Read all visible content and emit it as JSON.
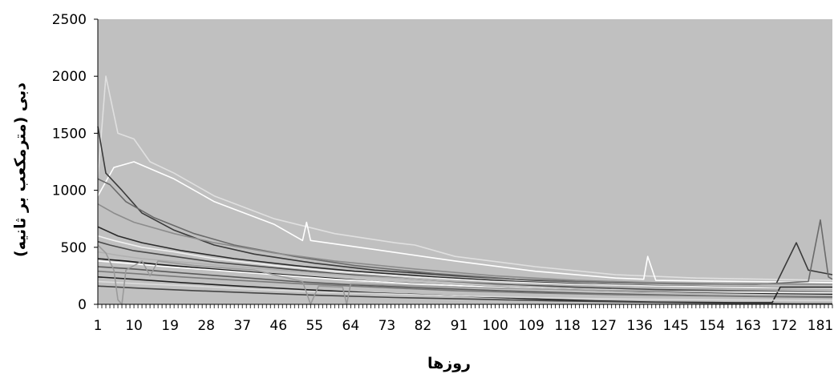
{
  "colors": {
    "plot_background": "#c0c0c0",
    "axis": "#000000",
    "series_palette": [
      "#ffffff",
      "#e6e6e6",
      "#d2d2d2",
      "#9a9a9a",
      "#7a7a7a",
      "#5a5a5a",
      "#3a3a3a",
      "#1a1a1a"
    ]
  },
  "chart_data": {
    "type": "line",
    "title": "",
    "xlabel": "روزها",
    "ylabel": "دبی (مترمکعب بر ثانیه)",
    "xlim": [
      1,
      184
    ],
    "ylim": [
      0,
      2500
    ],
    "grid": false,
    "legend": "none",
    "x_tick_labels": [
      "1",
      "10",
      "19",
      "28",
      "37",
      "46",
      "55",
      "64",
      "73",
      "82",
      "91",
      "100",
      "109",
      "118",
      "127",
      "136",
      "145",
      "154",
      "163",
      "172",
      "181"
    ],
    "y_tick_labels": [
      "0",
      "500",
      "1000",
      "1500",
      "2000",
      "2500"
    ],
    "series": [
      {
        "color": "#e0e0e0",
        "values": [
          [
            1,
            1100
          ],
          [
            3,
            2000
          ],
          [
            6,
            1500
          ],
          [
            10,
            1450
          ],
          [
            14,
            1250
          ],
          [
            20,
            1150
          ],
          [
            30,
            950
          ],
          [
            45,
            750
          ],
          [
            60,
            620
          ],
          [
            75,
            540
          ],
          [
            80,
            520
          ],
          [
            90,
            420
          ],
          [
            110,
            330
          ],
          [
            130,
            260
          ],
          [
            150,
            230
          ],
          [
            184,
            210
          ]
        ]
      },
      {
        "color": "#ffffff",
        "values": [
          [
            1,
            950
          ],
          [
            5,
            1200
          ],
          [
            10,
            1250
          ],
          [
            20,
            1100
          ],
          [
            30,
            900
          ],
          [
            45,
            700
          ],
          [
            52,
            560
          ],
          [
            53,
            720
          ],
          [
            54,
            560
          ],
          [
            70,
            480
          ],
          [
            90,
            380
          ],
          [
            110,
            290
          ],
          [
            130,
            230
          ],
          [
            137,
            220
          ],
          [
            138,
            420
          ],
          [
            140,
            210
          ],
          [
            184,
            190
          ]
        ]
      },
      {
        "color": "#3a3a3a",
        "values": [
          [
            1,
            1560
          ],
          [
            3,
            1150
          ],
          [
            7,
            1000
          ],
          [
            12,
            800
          ],
          [
            20,
            650
          ],
          [
            30,
            520
          ],
          [
            40,
            440
          ],
          [
            55,
            360
          ],
          [
            70,
            300
          ],
          [
            90,
            250
          ],
          [
            110,
            210
          ],
          [
            130,
            190
          ],
          [
            150,
            180
          ],
          [
            170,
            180
          ],
          [
            175,
            540
          ],
          [
            178,
            300
          ],
          [
            181,
            280
          ],
          [
            184,
            260
          ]
        ]
      },
      {
        "color": "#6a6a6a",
        "values": [
          [
            1,
            1100
          ],
          [
            4,
            1050
          ],
          [
            8,
            900
          ],
          [
            15,
            760
          ],
          [
            25,
            620
          ],
          [
            35,
            520
          ],
          [
            50,
            420
          ],
          [
            65,
            340
          ],
          [
            85,
            270
          ],
          [
            105,
            220
          ],
          [
            125,
            195
          ],
          [
            145,
            180
          ],
          [
            165,
            175
          ],
          [
            178,
            200
          ],
          [
            181,
            740
          ],
          [
            183,
            240
          ],
          [
            184,
            220
          ]
        ]
      },
      {
        "color": "#8c8c8c",
        "values": [
          [
            1,
            880
          ],
          [
            5,
            800
          ],
          [
            10,
            720
          ],
          [
            20,
            620
          ],
          [
            30,
            540
          ],
          [
            45,
            450
          ],
          [
            60,
            380
          ],
          [
            80,
            310
          ],
          [
            100,
            250
          ],
          [
            120,
            210
          ],
          [
            140,
            190
          ],
          [
            160,
            180
          ],
          [
            184,
            175
          ]
        ]
      },
      {
        "color": "#2a2a2a",
        "values": [
          [
            1,
            680
          ],
          [
            6,
            600
          ],
          [
            12,
            540
          ],
          [
            22,
            470
          ],
          [
            35,
            400
          ],
          [
            50,
            340
          ],
          [
            65,
            290
          ],
          [
            85,
            240
          ],
          [
            105,
            200
          ],
          [
            125,
            175
          ],
          [
            145,
            160
          ],
          [
            165,
            150
          ],
          [
            184,
            145
          ]
        ]
      },
      {
        "color": "#f0f0f0",
        "values": [
          [
            1,
            600
          ],
          [
            5,
            560
          ],
          [
            12,
            500
          ],
          [
            20,
            460
          ],
          [
            30,
            400
          ],
          [
            45,
            340
          ],
          [
            60,
            290
          ],
          [
            80,
            240
          ],
          [
            100,
            200
          ],
          [
            120,
            175
          ],
          [
            140,
            160
          ],
          [
            160,
            150
          ],
          [
            184,
            140
          ]
        ]
      },
      {
        "color": "#4a4a4a",
        "values": [
          [
            1,
            550
          ],
          [
            4,
            520
          ],
          [
            10,
            470
          ],
          [
            20,
            420
          ],
          [
            30,
            370
          ],
          [
            45,
            320
          ],
          [
            60,
            270
          ],
          [
            80,
            220
          ],
          [
            100,
            180
          ],
          [
            120,
            150
          ],
          [
            140,
            130
          ],
          [
            160,
            120
          ],
          [
            184,
            110
          ]
        ]
      },
      {
        "color": "#b0b0b0",
        "values": [
          [
            1,
            460
          ],
          [
            6,
            430
          ],
          [
            12,
            400
          ],
          [
            22,
            370
          ],
          [
            35,
            330
          ],
          [
            50,
            290
          ],
          [
            65,
            250
          ],
          [
            85,
            210
          ],
          [
            105,
            180
          ],
          [
            125,
            160
          ],
          [
            145,
            145
          ],
          [
            165,
            135
          ],
          [
            184,
            130
          ]
        ]
      },
      {
        "color": "#1a1a1a",
        "values": [
          [
            1,
            400
          ],
          [
            8,
            380
          ],
          [
            16,
            350
          ],
          [
            26,
            320
          ],
          [
            40,
            280
          ],
          [
            55,
            240
          ],
          [
            70,
            200
          ],
          [
            90,
            165
          ],
          [
            110,
            140
          ],
          [
            130,
            120
          ],
          [
            150,
            105
          ],
          [
            170,
            95
          ],
          [
            184,
            90
          ]
        ]
      },
      {
        "color": "#ffffff",
        "values": [
          [
            1,
            380
          ],
          [
            8,
            360
          ],
          [
            18,
            330
          ],
          [
            30,
            300
          ],
          [
            45,
            260
          ],
          [
            60,
            220
          ],
          [
            80,
            180
          ],
          [
            100,
            150
          ],
          [
            120,
            130
          ],
          [
            140,
            115
          ],
          [
            160,
            105
          ],
          [
            184,
            100
          ]
        ]
      },
      {
        "color": "#5a5a5a",
        "values": [
          [
            1,
            330
          ],
          [
            10,
            310
          ],
          [
            20,
            280
          ],
          [
            35,
            240
          ],
          [
            50,
            200
          ],
          [
            65,
            170
          ],
          [
            85,
            140
          ],
          [
            105,
            115
          ],
          [
            125,
            95
          ],
          [
            145,
            80
          ],
          [
            165,
            70
          ],
          [
            184,
            65
          ]
        ]
      },
      {
        "color": "#7a7a7a",
        "values": [
          [
            1,
            290
          ],
          [
            10,
            270
          ],
          [
            22,
            240
          ],
          [
            36,
            210
          ],
          [
            52,
            180
          ],
          [
            70,
            150
          ],
          [
            90,
            120
          ],
          [
            110,
            100
          ],
          [
            130,
            85
          ],
          [
            150,
            75
          ],
          [
            170,
            65
          ],
          [
            184,
            60
          ]
        ]
      },
      {
        "color": "#222222",
        "values": [
          [
            1,
            240
          ],
          [
            10,
            220
          ],
          [
            22,
            190
          ],
          [
            36,
            160
          ],
          [
            52,
            130
          ],
          [
            70,
            100
          ],
          [
            90,
            75
          ],
          [
            108,
            50
          ],
          [
            125,
            30
          ],
          [
            140,
            20
          ],
          [
            160,
            15
          ],
          [
            169,
            15
          ],
          [
            171,
            150
          ],
          [
            184,
            150
          ]
        ]
      },
      {
        "color": "#dcdcdc",
        "values": [
          [
            1,
            200
          ],
          [
            12,
            180
          ],
          [
            25,
            160
          ],
          [
            40,
            130
          ],
          [
            55,
            110
          ],
          [
            75,
            90
          ],
          [
            95,
            70
          ],
          [
            115,
            55
          ],
          [
            135,
            45
          ],
          [
            155,
            40
          ],
          [
            175,
            35
          ],
          [
            184,
            35
          ]
        ]
      },
      {
        "color": "#444444",
        "values": [
          [
            1,
            160
          ],
          [
            12,
            140
          ],
          [
            25,
            120
          ],
          [
            40,
            100
          ],
          [
            55,
            80
          ],
          [
            75,
            60
          ],
          [
            95,
            45
          ],
          [
            115,
            30
          ],
          [
            135,
            20
          ],
          [
            155,
            10
          ],
          [
            175,
            5
          ],
          [
            184,
            5
          ]
        ]
      },
      {
        "color": "#9a9a9a",
        "values": [
          [
            1,
            520
          ],
          [
            3,
            450
          ],
          [
            5,
            300
          ],
          [
            6,
            40
          ],
          [
            7,
            0
          ],
          [
            8,
            300
          ],
          [
            12,
            380
          ],
          [
            14,
            250
          ],
          [
            16,
            380
          ],
          [
            25,
            340
          ],
          [
            40,
            300
          ],
          [
            52,
            200
          ],
          [
            54,
            0
          ],
          [
            56,
            160
          ],
          [
            62,
            150
          ],
          [
            63,
            0
          ],
          [
            64,
            180
          ],
          [
            90,
            150
          ],
          [
            130,
            120
          ],
          [
            184,
            110
          ]
        ]
      }
    ]
  }
}
